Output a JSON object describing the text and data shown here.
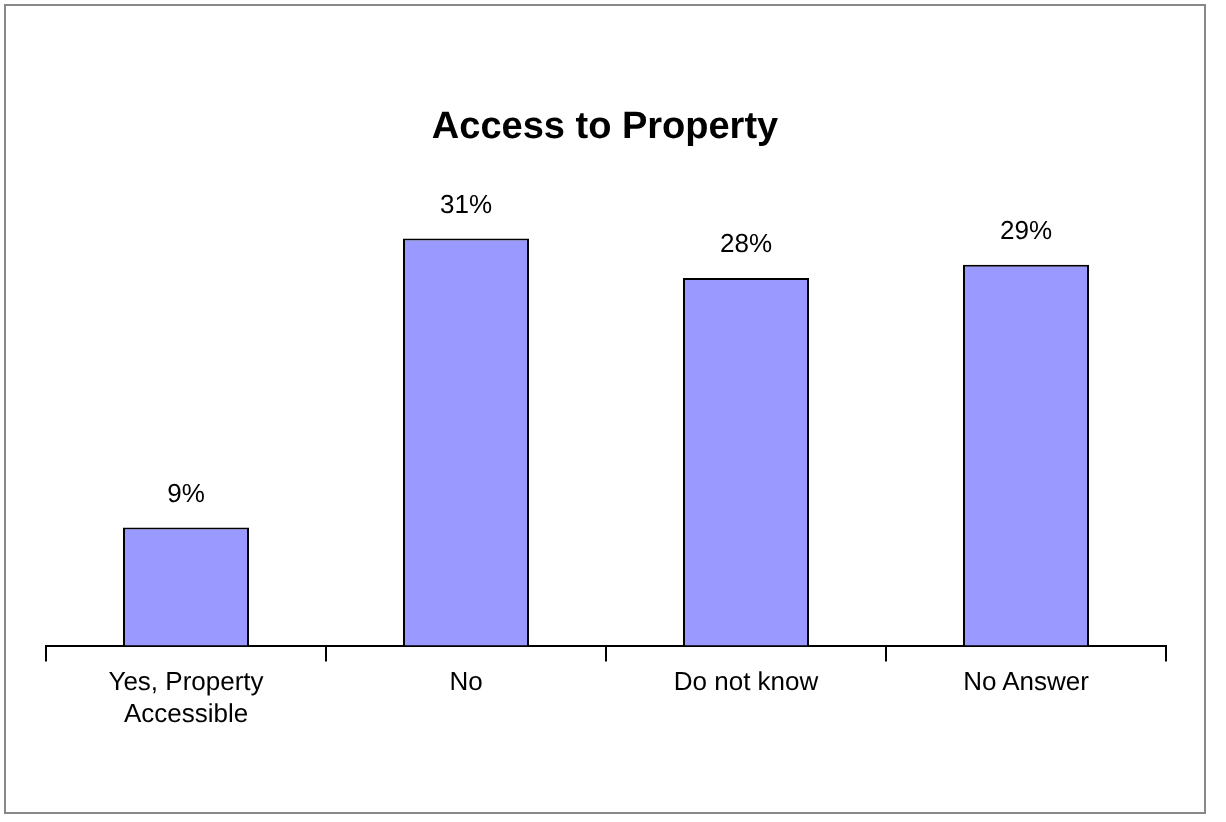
{
  "chart_data": {
    "type": "bar",
    "title": "Access to Property",
    "categories": [
      "Yes, Property Accessible",
      "No",
      "Do not know",
      "No Answer"
    ],
    "values": [
      9,
      31,
      28,
      29
    ],
    "color": "#9999ff",
    "value_labels": [
      "9%",
      "31%",
      "28%",
      "29%"
    ],
    "grid": false,
    "legend": false
  }
}
